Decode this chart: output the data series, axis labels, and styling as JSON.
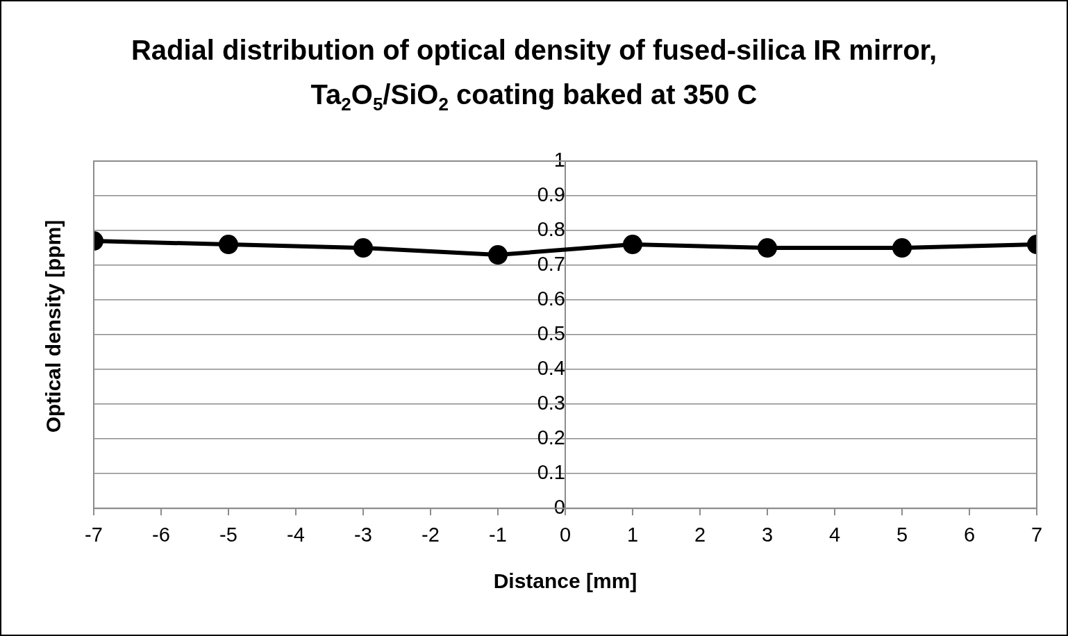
{
  "chart_data": {
    "type": "line",
    "title": "Radial distribution of optical density of fused-silica IR mirror, Ta$_{2}$O$_{5}$/SiO$_{2}$ coating baked at 350 C",
    "xlabel": "Distance [mm]",
    "ylabel": "Optical density [ppm]",
    "x": [
      -7,
      -5,
      -3,
      -1,
      1,
      3,
      5,
      7
    ],
    "series": [
      {
        "color": "#000000",
        "values": [
          0.77,
          0.76,
          0.75,
          0.73,
          0.76,
          0.75,
          0.75,
          0.76
        ]
      }
    ],
    "xlim": [
      -7,
      7
    ],
    "xticks": [
      -7,
      -6,
      -5,
      -4,
      -3,
      -2,
      -1,
      0,
      1,
      2,
      3,
      4,
      5,
      6,
      7
    ],
    "ylim": [
      0,
      1
    ],
    "yticks": [
      0,
      0.1,
      0.2,
      0.3,
      0.4,
      0.5,
      0.6,
      0.7,
      0.8,
      0.9,
      1
    ],
    "grid": "y",
    "legend": false,
    "marker": "circle",
    "line_style": "solid"
  }
}
